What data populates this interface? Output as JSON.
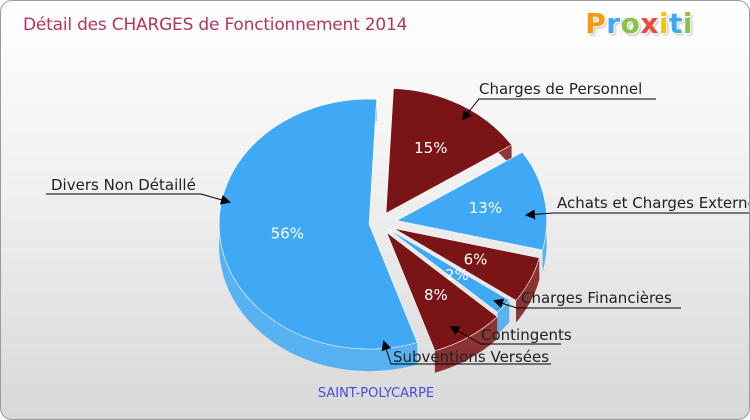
{
  "header": {
    "title": "Détail des CHARGES de Fonctionnement 2014",
    "logo": "Proxiti"
  },
  "footer": {
    "location": "SAINT-POLYCARPE"
  },
  "colors": {
    "blue": "#3fa9f5",
    "darkred": "#7a1416",
    "title": "#b5355b",
    "location": "#4a4ae0"
  },
  "chart_data": {
    "type": "pie",
    "title": "Détail des CHARGES de Fonctionnement 2014",
    "subtitle": "SAINT-POLYCARPE",
    "slices": [
      {
        "label": "Charges de Personnel",
        "value": 15,
        "pct": "15%"
      },
      {
        "label": "Achats et Charges Externes",
        "value": 13,
        "pct": "13%"
      },
      {
        "label": "Charges Financières",
        "value": 6,
        "pct": "6%"
      },
      {
        "label": "Contingents",
        "value": 0,
        "pct": ""
      },
      {
        "label": "Subventions Versées",
        "value": 2,
        "pct": "2%"
      },
      {
        "label": "Divers Non Détaillé",
        "value": 8,
        "pct": "8%"
      },
      {
        "label": "Divers Non Détaillé",
        "value": 56,
        "pct": "56%"
      }
    ],
    "callouts": [
      "Charges de Personnel",
      "Achats et Charges Externes",
      "Charges Financières",
      "Contingents",
      "Subventions Versées",
      "Divers Non Détaillé"
    ]
  }
}
